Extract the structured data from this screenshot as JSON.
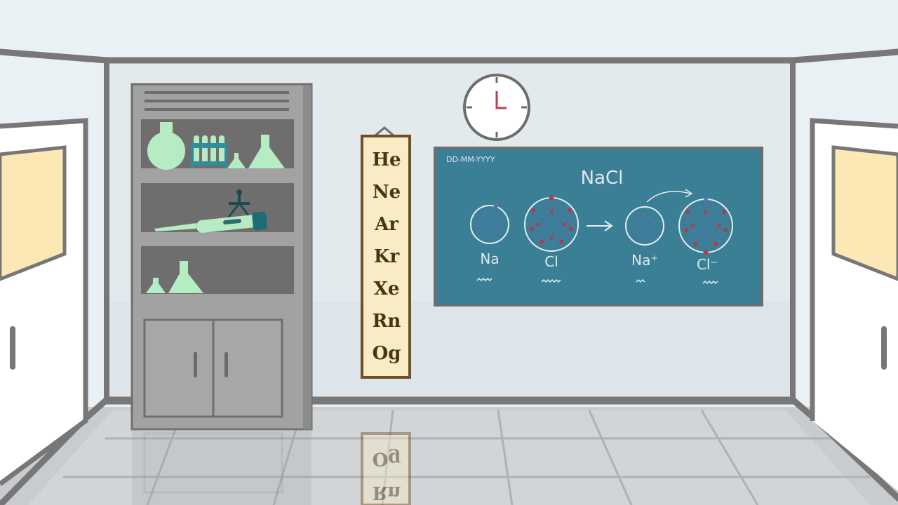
{
  "scene": {
    "colors": {
      "wall": "#e3eaee",
      "frame": "#787676",
      "board": "#3a7f96",
      "shelf": "#a2a2a2",
      "glass": "#b6ecc4",
      "poster": "#f7ecc6",
      "window": "#fbe8b4"
    }
  },
  "poster": {
    "elements": [
      "He",
      "Ne",
      "Ar",
      "Kr",
      "Xe",
      "Rn",
      "Og"
    ],
    "reflection": [
      "Og",
      "Rn"
    ]
  },
  "board": {
    "date_placeholder": "DD-MM-YYYY",
    "title": "NaCl",
    "labels": [
      "Na",
      "Cl",
      "Na⁺",
      "Cl⁻"
    ]
  }
}
